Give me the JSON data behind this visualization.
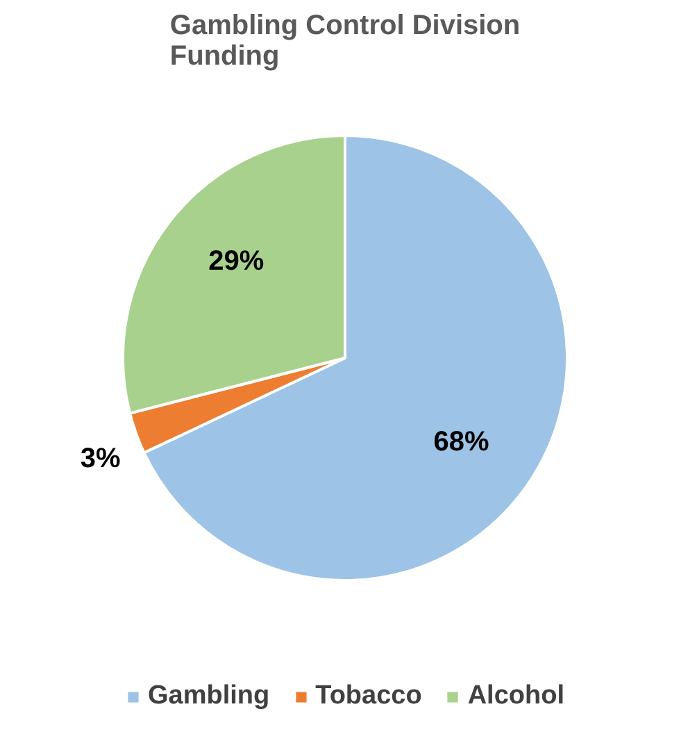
{
  "chart_data": {
    "type": "pie",
    "title": "Gambling Control Division Funding",
    "categories": [
      "Gambling",
      "Tobacco",
      "Alcohol"
    ],
    "values": [
      68,
      3,
      29
    ],
    "colors": [
      "#9dc3e6",
      "#ed7d31",
      "#a9d18e"
    ],
    "value_labels": [
      "68%",
      "3%",
      "29%"
    ],
    "legend": "bottom"
  }
}
